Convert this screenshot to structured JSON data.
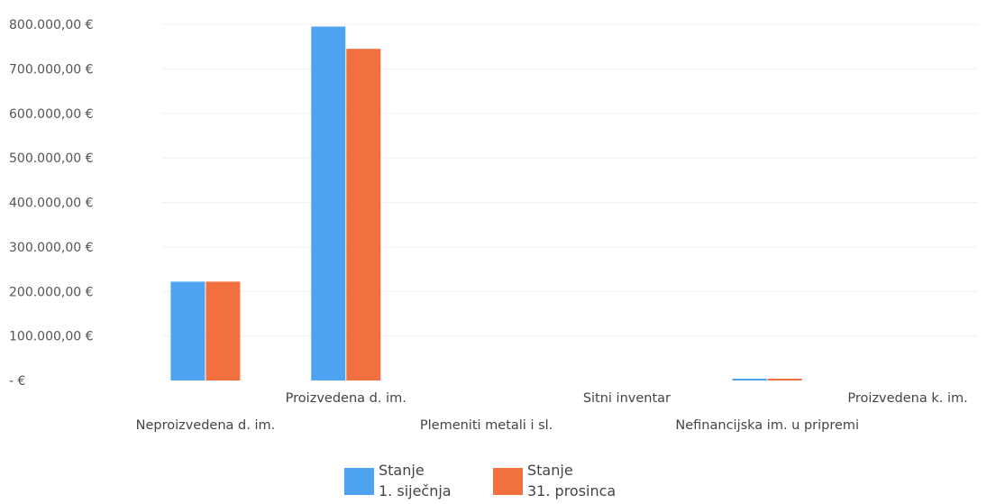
{
  "chart_data": {
    "type": "bar",
    "title": "",
    "xlabel": "",
    "ylabel": "",
    "categories": [
      "Neproizvedena d. im.",
      "Proizvedena d. im.",
      "Plemeniti metali i sl.",
      "Sitni inventar",
      "Nefinancijska im. u pripremi",
      "Proizvedena k. im."
    ],
    "series": [
      {
        "name_lines": [
          "Stanje",
          "1. siječnja"
        ],
        "color": "#4da3f0",
        "values": [
          222000,
          795000,
          0,
          0,
          4000,
          0
        ]
      },
      {
        "name_lines": [
          "Stanje",
          "31. prosinca"
        ],
        "color": "#f2703f",
        "values": [
          222000,
          745000,
          0,
          0,
          4000,
          0
        ]
      }
    ],
    "ylim": [
      0,
      800000
    ],
    "yticks": [
      0,
      100000,
      200000,
      300000,
      400000,
      500000,
      600000,
      700000,
      800000
    ],
    "ytick_labels": [
      "-   €",
      "100.000,00 €",
      "200.000,00 €",
      "300.000,00 €",
      "400.000,00 €",
      "500.000,00 €",
      "600.000,00 €",
      "700.000,00 €",
      "800.000,00 €"
    ],
    "grid": true,
    "legend_position": "bottom"
  }
}
